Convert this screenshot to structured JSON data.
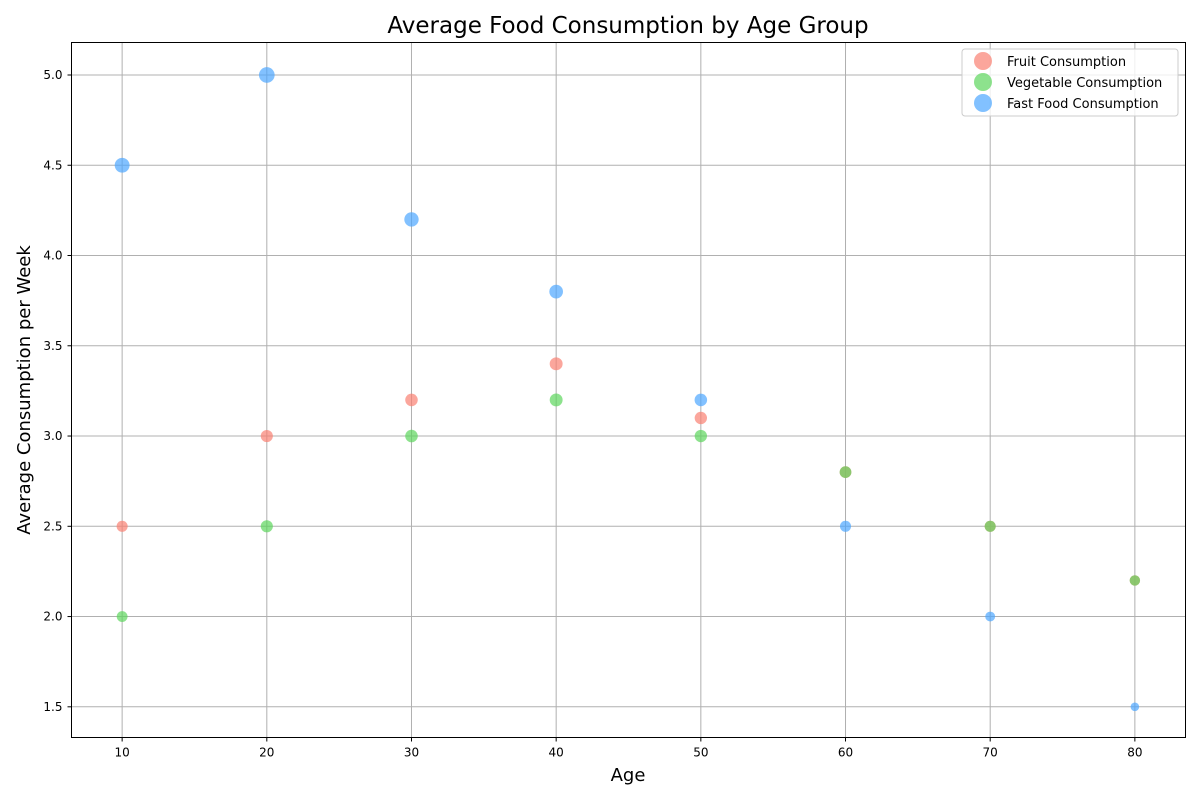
{
  "chart_data": {
    "type": "scatter",
    "title": "Average Food Consumption by Age Group",
    "xlabel": "Age",
    "ylabel": "Average Consumption per Week",
    "xlim": [
      6.5,
      83.5
    ],
    "ylim": [
      1.33,
      5.18
    ],
    "xticks": [
      10,
      20,
      30,
      40,
      50,
      60,
      70,
      80
    ],
    "xtick_labels": [
      "10",
      "20",
      "30",
      "40",
      "50",
      "60",
      "70",
      "80"
    ],
    "yticks": [
      1.5,
      2.0,
      2.5,
      3.0,
      3.5,
      4.0,
      4.5,
      5.0
    ],
    "ytick_labels": [
      "1.5",
      "2.0",
      "2.5",
      "3.0",
      "3.5",
      "4.0",
      "4.5",
      "5.0"
    ],
    "grid": true,
    "legend_position": "top-right",
    "x": [
      10,
      20,
      30,
      40,
      50,
      60,
      70,
      80
    ],
    "series": [
      {
        "name": "Fruit Consumption",
        "color": "#fa8072",
        "y": [
          2.5,
          3.0,
          3.2,
          3.4,
          3.1,
          2.8,
          2.5,
          2.2
        ],
        "size": [
          2.5,
          3.0,
          3.2,
          3.4,
          3.1,
          2.8,
          2.5,
          2.2
        ]
      },
      {
        "name": "Vegetable Consumption",
        "color": "#5cd65c",
        "y": [
          2.0,
          2.5,
          3.0,
          3.2,
          3.0,
          2.8,
          2.5,
          2.2
        ],
        "size": [
          2.4,
          3.0,
          3.2,
          3.4,
          3.1,
          2.8,
          2.5,
          2.2
        ]
      },
      {
        "name": "Fast Food Consumption",
        "color": "#4da6ff",
        "y": [
          4.5,
          5.0,
          4.2,
          3.8,
          3.2,
          2.5,
          2.0,
          1.5
        ],
        "size": [
          4.5,
          5.0,
          4.2,
          3.8,
          3.2,
          2.5,
          2.0,
          1.5
        ]
      }
    ]
  }
}
